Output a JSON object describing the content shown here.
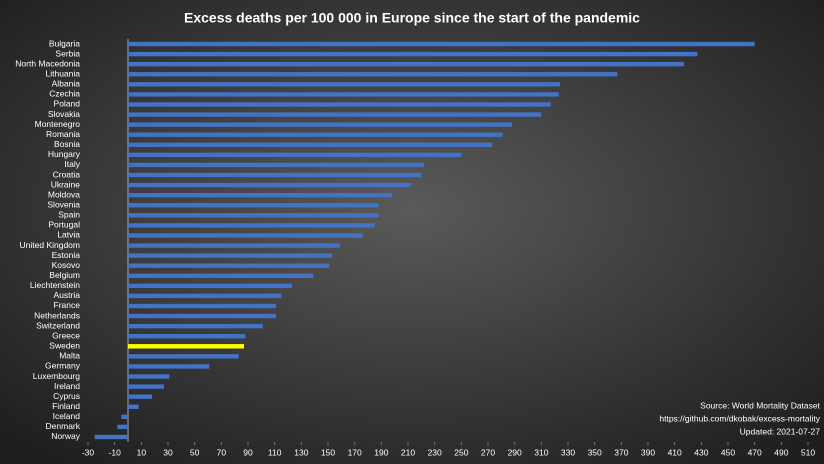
{
  "chart_data": {
    "type": "hbar",
    "title": "Excess deaths per 100 000 in Europe since the start of the pandemic",
    "categories": [
      "Bulgaria",
      "Serbia",
      "North Macedonia",
      "Lithuania",
      "Albania",
      "Czechia",
      "Poland",
      "Slovakia",
      "Montenegro",
      "Romania",
      "Bosnia",
      "Hungary",
      "Italy",
      "Croatia",
      "Ukraine",
      "Moldova",
      "Slovenia",
      "Spain",
      "Portugal",
      "Latvia",
      "United Kingdom",
      "Estonia",
      "Kosovo",
      "Belgium",
      "Liechtenstein",
      "Austria",
      "France",
      "Netherlands",
      "Switzerland",
      "Greece",
      "Sweden",
      "Malta",
      "Germany",
      "Luxembourg",
      "Ireland",
      "Cyprus",
      "Finland",
      "Iceland",
      "Denmark",
      "Norway"
    ],
    "values": [
      470,
      427,
      417,
      367,
      324,
      323,
      317,
      310,
      288,
      281,
      273,
      250,
      222,
      220,
      212,
      198,
      188,
      188,
      185,
      176,
      159,
      153,
      151,
      139,
      123,
      115,
      111,
      111,
      101,
      88,
      87,
      83,
      61,
      31,
      27,
      18,
      8,
      -5,
      -8,
      -25
    ],
    "color": "#4472c4",
    "highlight_colors": {
      "Sweden": "#ffff00"
    },
    "xlim": [
      -30,
      510
    ],
    "xticks": [
      -30,
      -10,
      10,
      30,
      50,
      70,
      90,
      110,
      130,
      150,
      170,
      190,
      210,
      230,
      250,
      270,
      290,
      310,
      330,
      350,
      370,
      390,
      410,
      430,
      450,
      470,
      490,
      510
    ],
    "grid": false,
    "source": [
      "Source: World Mortality Dataset",
      "https://github.com/dkobak/excess-mortality",
      "Updated: 2021-07-27"
    ]
  }
}
